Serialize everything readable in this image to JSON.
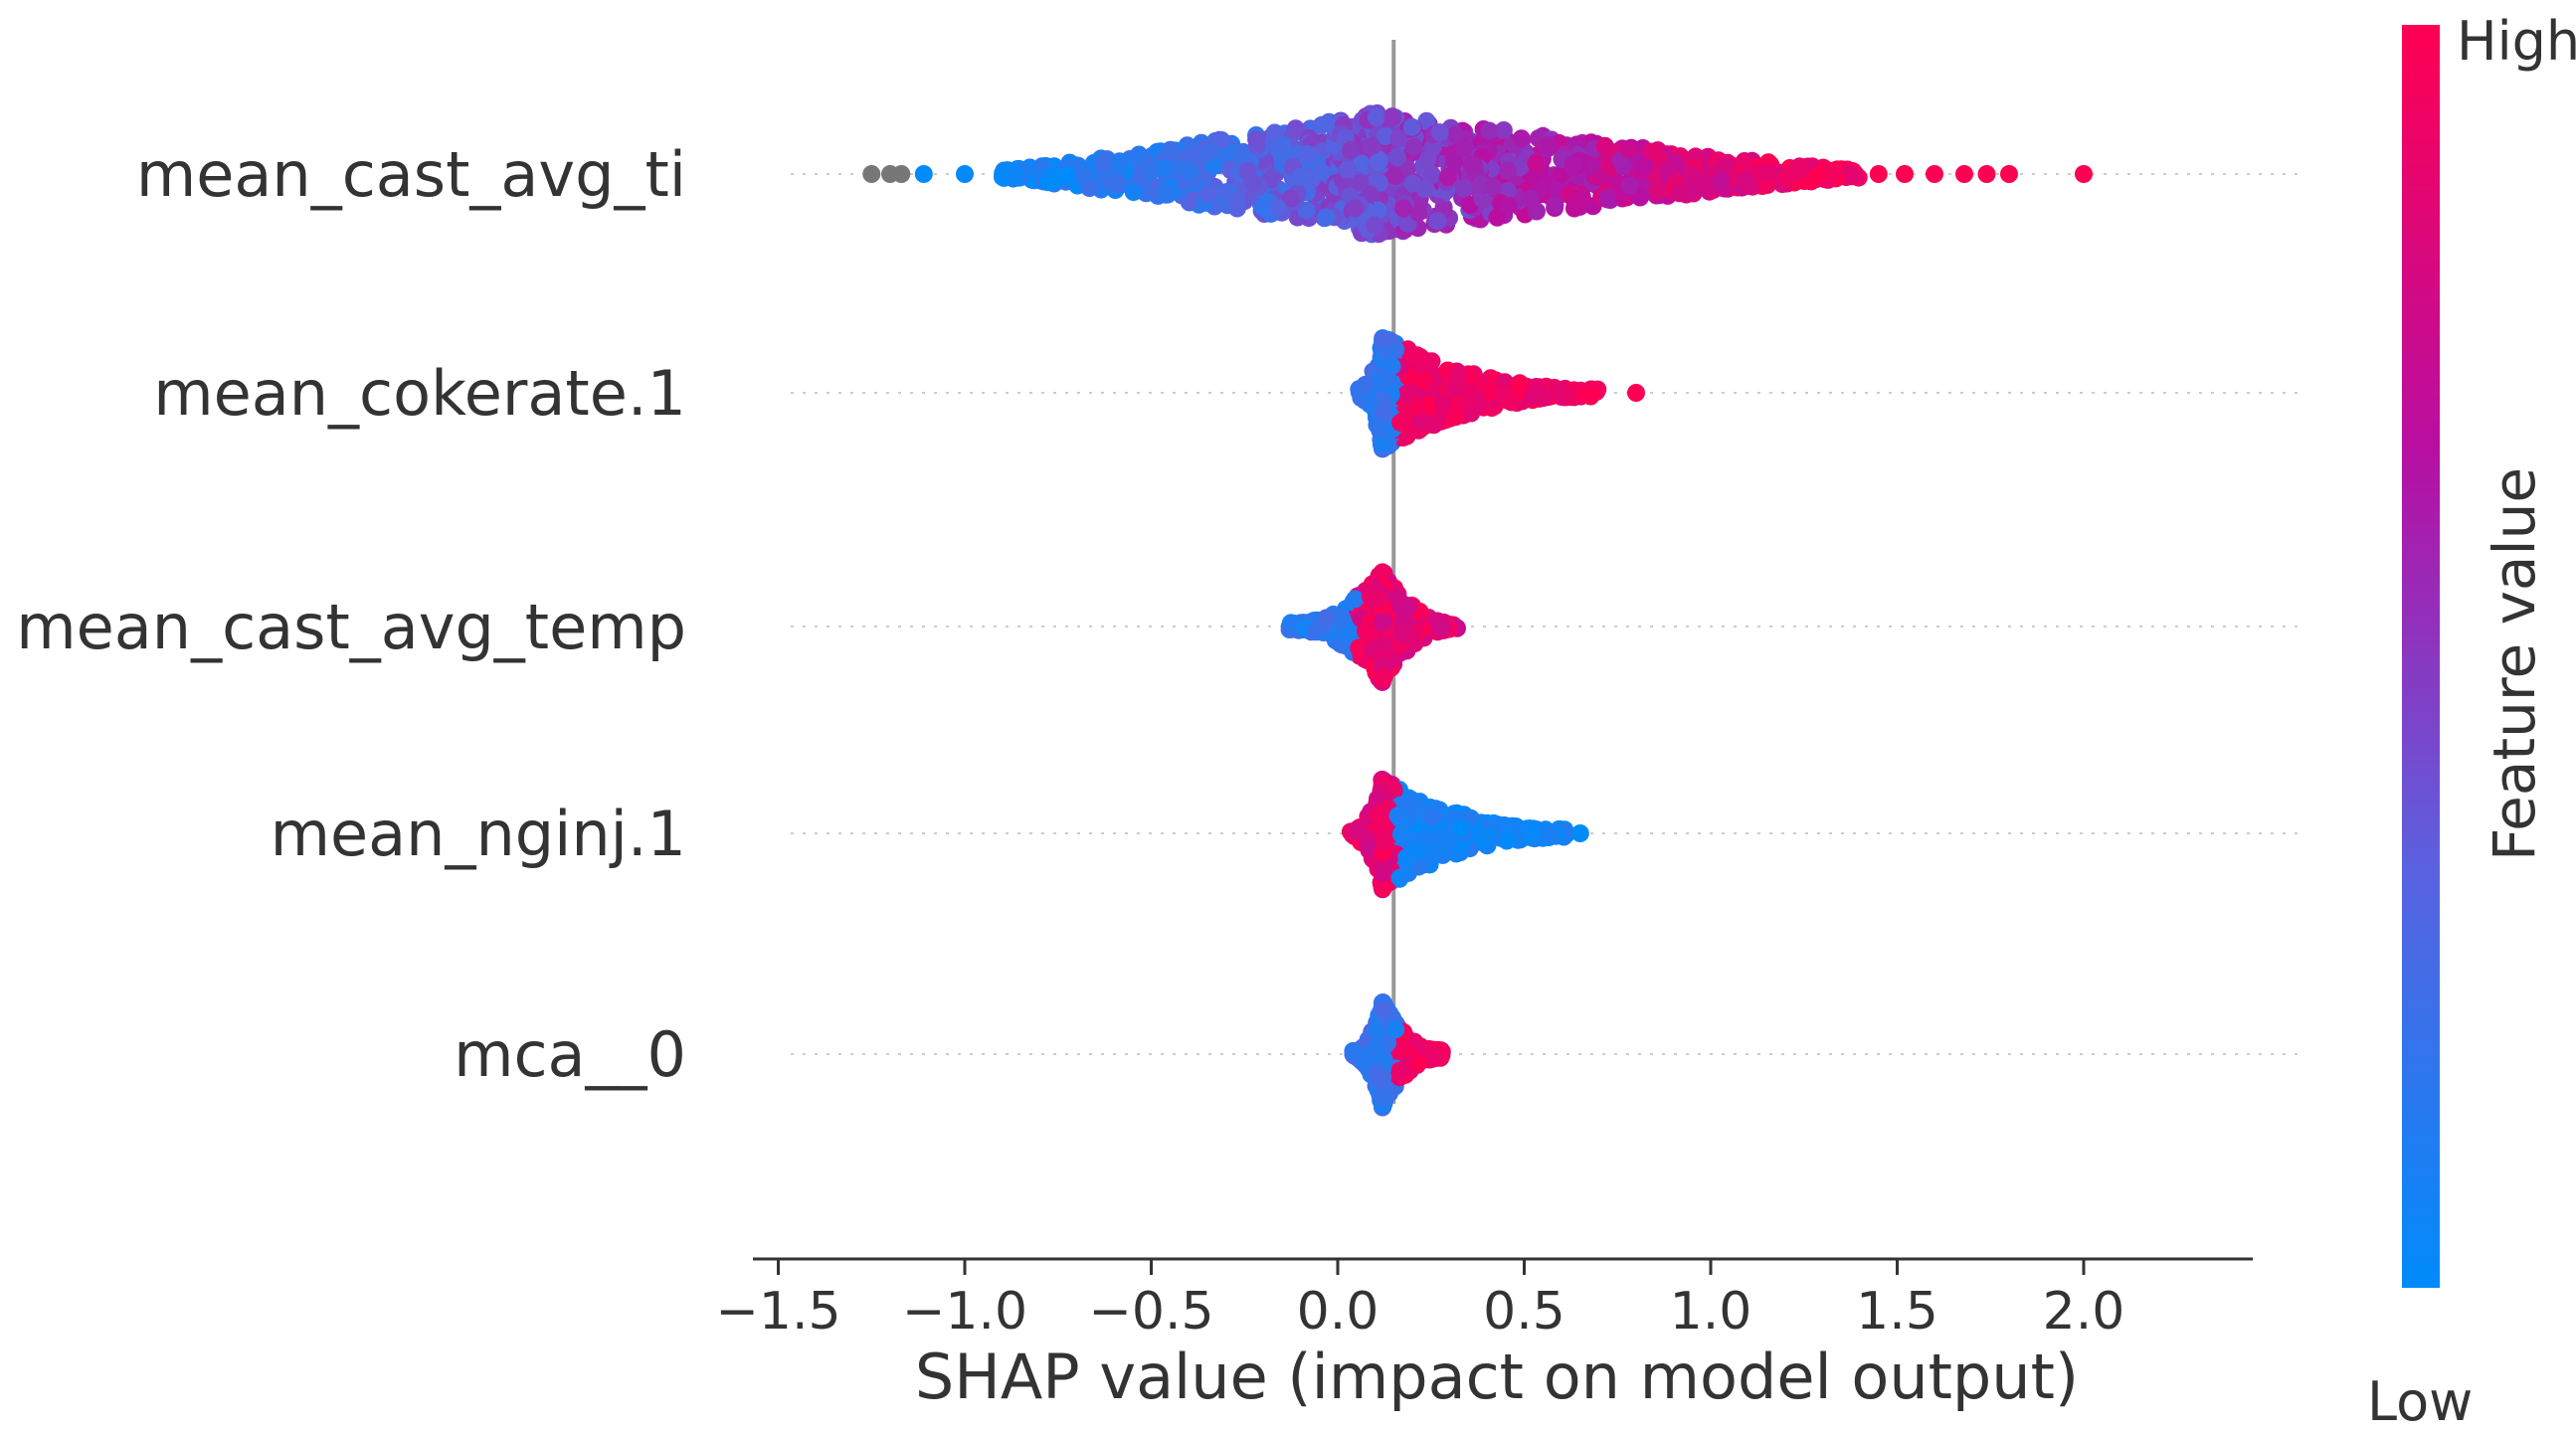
{
  "chart_data": {
    "type": "scatter",
    "subtype": "shap-beeswarm",
    "title": "",
    "xlabel": "SHAP value (impact on model output)",
    "ylabel": "",
    "xlim": [
      -1.6,
      2.45
    ],
    "xticks": [
      -1.5,
      -1.0,
      -0.5,
      0.0,
      0.5,
      1.0,
      1.5,
      2.0
    ],
    "xtick_labels": [
      "−1.5",
      "−1.0",
      "−0.5",
      "0.0",
      "0.5",
      "1.0",
      "1.5",
      "2.0"
    ],
    "base_value": 0.15,
    "grid": false,
    "features": [
      {
        "name": "mean_cast_avg_ti",
        "min": -1.25,
        "max": 2.0,
        "dense_range": [
          -0.9,
          1.4
        ],
        "low_side": "negative",
        "spread": 1.0,
        "outliers": [
          {
            "x": -1.25,
            "c": "grey"
          },
          {
            "x": -1.2,
            "c": "grey"
          },
          {
            "x": -1.17,
            "c": "grey"
          },
          {
            "x": -1.11,
            "c": 0.0
          },
          {
            "x": -1.0,
            "c": 0.02
          },
          {
            "x": -0.86,
            "c": 0.05
          },
          {
            "x": 1.45,
            "c": 1.0
          },
          {
            "x": 1.52,
            "c": 1.0
          },
          {
            "x": 1.6,
            "c": 1.0
          },
          {
            "x": 1.68,
            "c": 1.0
          },
          {
            "x": 1.74,
            "c": 1.0
          },
          {
            "x": 1.8,
            "c": 1.0
          },
          {
            "x": 2.0,
            "c": 1.0
          }
        ]
      },
      {
        "name": "mean_cokerate.1",
        "min": 0.03,
        "max": 0.8,
        "dense_range": [
          0.05,
          0.7
        ],
        "low_side": "negative",
        "spread": 0.85,
        "outliers": [
          {
            "x": 0.8,
            "c": 1.0
          }
        ]
      },
      {
        "name": "mean_cast_avg_temp",
        "min": -0.13,
        "max": 0.32,
        "dense_range": [
          -0.13,
          0.32
        ],
        "low_side": "negative",
        "spread": 0.85,
        "outliers": []
      },
      {
        "name": "mean_nginj.1",
        "min": 0.03,
        "max": 0.65,
        "dense_range": [
          0.03,
          0.62
        ],
        "low_side": "positive",
        "spread": 0.85,
        "outliers": [
          {
            "x": 0.65,
            "c": 0.0
          }
        ]
      },
      {
        "name": "mca__0",
        "min": 0.04,
        "max": 0.28,
        "dense_range": [
          0.04,
          0.28
        ],
        "low_side": "negative",
        "spread": 0.8,
        "outliers": []
      }
    ],
    "colorbar": {
      "label": "Feature value",
      "high_label": "High",
      "low_label": "Low",
      "colors": [
        "#008bfb",
        "#5a62e0",
        "#b70fa3",
        "#ff0052"
      ],
      "grey_color": "#777777"
    }
  }
}
